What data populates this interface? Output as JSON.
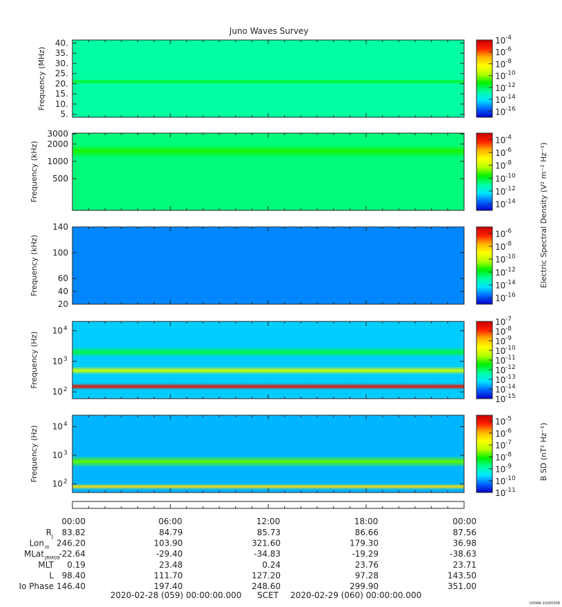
{
  "title": "Juno Waves Survey",
  "corner_stamp": "UIOWA 20200308",
  "colors": {
    "colormap": [
      "#0000c8",
      "#0066ff",
      "#00e6ff",
      "#00ffa0",
      "#00f000",
      "#b4ff00",
      "#ffff00",
      "#ffb400",
      "#ff2000",
      "#c80000"
    ]
  },
  "chart_data": [
    {
      "type": "heatmap",
      "ylabel": "Frequency (MHz)",
      "yticks": [
        "40.",
        "35.",
        "30.",
        "25.",
        "20.",
        "15.",
        "10.",
        "5."
      ],
      "ytick_values": [
        40,
        35,
        30,
        25,
        20,
        15,
        10,
        5
      ],
      "ylim": [
        3.5,
        41.5
      ],
      "yscale": "linear",
      "background_level": 0.33,
      "bands": [
        {
          "value": 21,
          "level": 0.42,
          "width": 0.6
        }
      ],
      "colorbar_labels": [
        "-4",
        "-6",
        "-8",
        "-10",
        "-12",
        "-14",
        "-16"
      ],
      "colorbar_range": [
        -17,
        -4
      ]
    },
    {
      "type": "heatmap",
      "ylabel": "Frequency (kHz)",
      "yticks": [
        "3000",
        "2000",
        "1000",
        "500"
      ],
      "ytick_values": [
        3000,
        2000,
        1000,
        500
      ],
      "ylim": [
        140,
        3100
      ],
      "yscale": "log",
      "background_level": 0.36,
      "bands": [
        {
          "value": 1500,
          "level": 0.46,
          "width": 1.5
        }
      ],
      "colorbar_labels": [
        "-4",
        "-6",
        "-8",
        "-10",
        "-12",
        "-14"
      ],
      "colorbar_range": [
        -15,
        -3
      ],
      "shared_colorbar_label": "Electric Spectral Density (V² m⁻² Hz⁻¹)"
    },
    {
      "type": "heatmap",
      "ylabel": "Frequency (kHz)",
      "yticks": [
        "140",
        "100",
        "60",
        "40",
        "20"
      ],
      "ytick_values": [
        140,
        100,
        60,
        40,
        20
      ],
      "ylim": [
        20,
        140
      ],
      "yscale": "linear",
      "background_level": 0.14,
      "bands": [],
      "colorbar_labels": [
        "-6",
        "-8",
        "-10",
        "-12",
        "-14",
        "-16"
      ],
      "colorbar_range": [
        -17,
        -5
      ]
    },
    {
      "type": "heatmap",
      "ylabel": "Frequency (Hz)",
      "yticks": [
        "10",
        "10",
        "10"
      ],
      "ytick_exponents": [
        "4",
        "3",
        "2"
      ],
      "ytick_values": [
        10000,
        1000,
        100
      ],
      "ylim": [
        60,
        20000
      ],
      "yscale": "log",
      "background_level": 0.2,
      "bands": [
        {
          "value": 150,
          "level": 0.93,
          "width": 0.8
        },
        {
          "value": 500,
          "level": 0.6,
          "width": 1.0
        },
        {
          "value": 2000,
          "level": 0.4,
          "width": 1.2
        }
      ],
      "colorbar_labels": [
        "-7",
        "-8",
        "-9",
        "-10",
        "-11",
        "-12",
        "-13",
        "-14",
        "-15"
      ],
      "colorbar_range": [
        -15,
        -7
      ]
    },
    {
      "type": "heatmap",
      "ylabel": "Frequency (Hz)",
      "yticks": [
        "10",
        "10",
        "10"
      ],
      "ytick_exponents": [
        "4",
        "3",
        "2"
      ],
      "ytick_values": [
        10000,
        1000,
        100
      ],
      "ylim": [
        50,
        25000
      ],
      "yscale": "log",
      "background_level": 0.18,
      "bands": [
        {
          "value": 80,
          "level": 0.72,
          "width": 0.7
        },
        {
          "value": 600,
          "level": 0.5,
          "width": 1.4
        }
      ],
      "colorbar_labels": [
        "-5",
        "-6",
        "-7",
        "-8",
        "-9",
        "-10",
        "-11"
      ],
      "colorbar_range": [
        -11,
        -4.5
      ],
      "colorbar_title": "B SD (nT² Hz⁻¹)"
    }
  ],
  "ephemeris": {
    "times": [
      "00:00",
      "06:00",
      "12:00",
      "18:00",
      "00:00"
    ],
    "rows": [
      {
        "label": "R",
        "sub": "J",
        "values": [
          "83.82",
          "84.79",
          "85.73",
          "86.66",
          "87.56"
        ]
      },
      {
        "label": "Lon",
        "sub": "III",
        "values": [
          "246.20",
          "103.90",
          "321.60",
          "179.30",
          "36.98"
        ]
      },
      {
        "label": "MLat",
        "sub": "JRM09",
        "values": [
          "-22.64",
          "-29.40",
          "-34.83",
          "-19.29",
          "-38.63"
        ]
      },
      {
        "label": "MLT",
        "sub": "",
        "values": [
          "0.19",
          "23.48",
          "0.24",
          "23.76",
          "23.71"
        ]
      },
      {
        "label": "L",
        "sub": "",
        "values": [
          "98.40",
          "111.70",
          "127.20",
          "97.28",
          "143.50"
        ]
      },
      {
        "label": "Io Phase",
        "sub": "",
        "values": [
          "146.40",
          "197.40",
          "248.60",
          "299.90",
          "351.00"
        ]
      }
    ],
    "footer_start": "2020-02-28 (059) 00:00:00.000",
    "footer_center": "SCET",
    "footer_end": "2020-02-29 (060) 00:00:00.000"
  }
}
